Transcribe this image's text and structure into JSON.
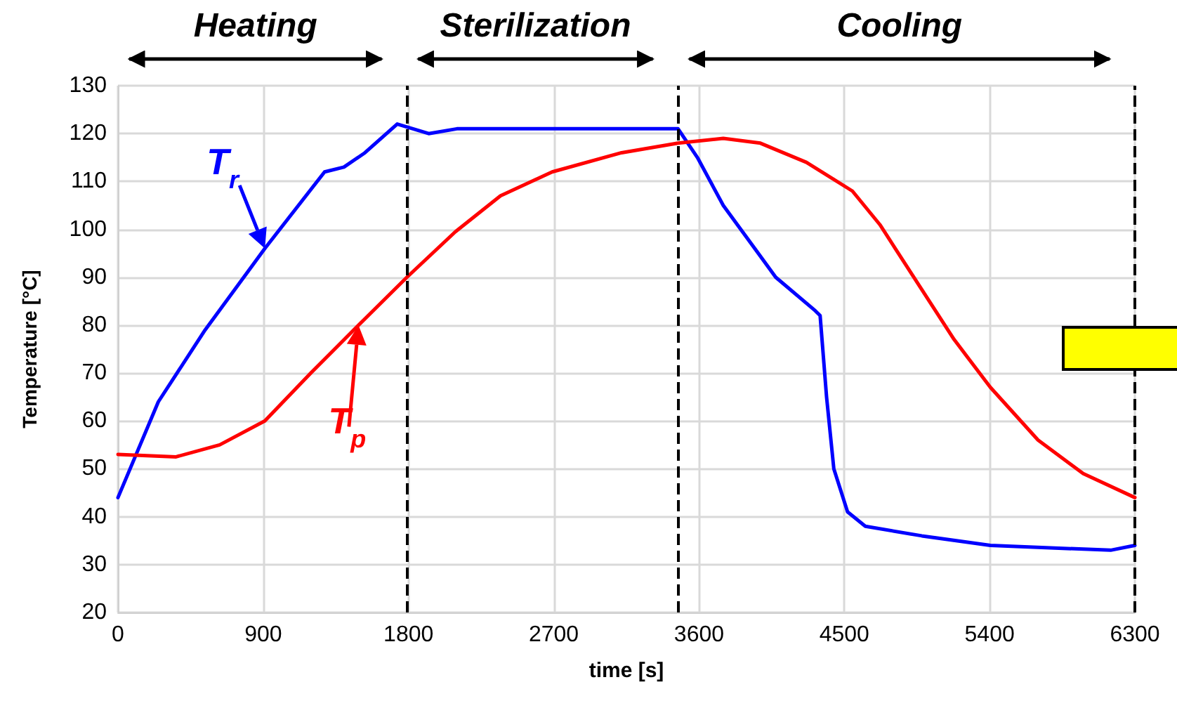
{
  "chart_data": {
    "type": "line",
    "xlabel": "time [s]",
    "ylabel": "Temperature [°C]",
    "xlim": [
      0,
      6300
    ],
    "xticks": [
      0,
      900,
      1800,
      2700,
      3600,
      4500,
      5400,
      6300
    ],
    "ylim": [
      20,
      130
    ],
    "yticks": [
      20,
      30,
      40,
      50,
      60,
      70,
      80,
      90,
      100,
      110,
      120,
      130
    ],
    "grid": true,
    "marker": "none",
    "line_style": "solid",
    "series": [
      {
        "color": "#0000ff",
        "x": [
          0,
          250,
          540,
          910,
          1280,
          1400,
          1530,
          1730,
          1925,
          2100,
          2260,
          2430,
          3470,
          3590,
          3750,
          3945,
          4075,
          4320,
          4350,
          4390,
          4435,
          4520,
          4630,
          4980,
          5405,
          6150,
          6300
        ],
        "values": [
          44,
          64,
          79,
          96,
          112,
          113,
          116,
          122,
          120,
          121,
          121,
          121,
          121,
          115,
          105,
          96,
          90,
          83,
          82,
          65,
          50,
          41,
          38,
          36,
          34,
          33,
          34
        ]
      },
      {
        "color": "#ff0000",
        "x": [
          0,
          360,
          630,
          910,
          1195,
          1490,
          1790,
          2090,
          2370,
          2690,
          3120,
          3470,
          3750,
          3980,
          4265,
          4550,
          4720,
          4950,
          5180,
          5405,
          5700,
          5980,
          6300
        ],
        "values": [
          53,
          52.5,
          55,
          60,
          70,
          80,
          90,
          99.5,
          107,
          112,
          116,
          118,
          119,
          118,
          114,
          108,
          101,
          89,
          77,
          67,
          56,
          49,
          44
        ]
      }
    ],
    "ref_lines": [
      {
        "axis": "x",
        "value": 1790,
        "color": "#000000",
        "line_style": "dashed"
      },
      {
        "axis": "x",
        "value": 3470,
        "color": "#000000",
        "line_style": "dashed"
      },
      {
        "axis": "x",
        "value": 6300,
        "color": "#000000",
        "line_style": "dashed"
      }
    ],
    "annotations": [
      "Heating",
      "Sterilization",
      "Cooling",
      {
        "text": "T$_{r}$",
        "x": 910,
        "y": 96
      },
      {
        "text": "T$_{p}$",
        "x": 1490,
        "y": 80
      }
    ]
  }
}
